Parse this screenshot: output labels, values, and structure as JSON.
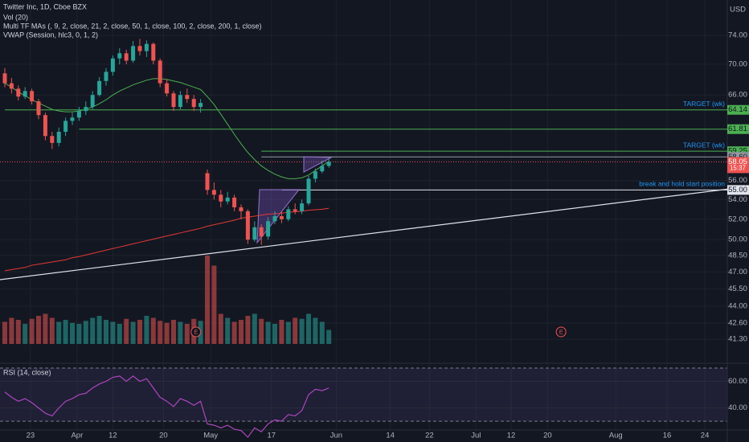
{
  "chart_data": {
    "type": "candlestick",
    "title": "Twitter Inc, 1D, Cboe BZX",
    "indicators": [
      "Vol (20)",
      "Multi TF MAs (, 9, 2, close, 21, 2, close, 50, 1, close, 100, 2, close, 200, 1, close)",
      "VWAP (Session, hlc3, 0, 1, 2)"
    ],
    "currency": "USD",
    "log_scale": true,
    "grid": true,
    "up_color": "#26a69a",
    "down_color": "#ef5350",
    "ylim": [
      40.8,
      79.2
    ],
    "yticks": [
      {
        "value": 74,
        "label": "74.00"
      },
      {
        "value": 70,
        "label": "70.00"
      },
      {
        "value": 66,
        "label": "66.00"
      },
      {
        "value": 56,
        "label": "56.00"
      },
      {
        "value": 54,
        "label": "54.00"
      },
      {
        "value": 52,
        "label": "52.00"
      },
      {
        "value": 50,
        "label": "50.00"
      },
      {
        "value": 48.5,
        "label": "48.50"
      },
      {
        "value": 47,
        "label": "47.00"
      },
      {
        "value": 45.5,
        "label": "45.50"
      },
      {
        "value": 44,
        "label": "44.00"
      },
      {
        "value": 42.6,
        "label": "42.60"
      },
      {
        "value": 41.3,
        "label": "41.30"
      }
    ],
    "xticks": [
      {
        "value": 3.8,
        "label": "23"
      },
      {
        "value": 10.7,
        "label": "Apr"
      },
      {
        "value": 16,
        "label": "12"
      },
      {
        "value": 23.5,
        "label": "20"
      },
      {
        "value": 30.5,
        "label": "May"
      },
      {
        "value": 39.5,
        "label": "17"
      },
      {
        "value": 49.1,
        "label": "Jun"
      },
      {
        "value": 57.1,
        "label": "14"
      },
      {
        "value": 62.9,
        "label": "22"
      },
      {
        "value": 69.8,
        "label": "Jul"
      },
      {
        "value": 75,
        "label": "12"
      },
      {
        "value": 80.4,
        "label": "20"
      },
      {
        "value": 90.5,
        "label": "Aug"
      },
      {
        "value": 98.1,
        "label": "16"
      },
      {
        "value": 103.7,
        "label": "24"
      }
    ],
    "open": [
      68.8,
      67.5,
      66.8,
      65.8,
      66.5,
      65.2,
      63.5,
      61.0,
      60.2,
      61.5,
      62.8,
      63.2,
      64.0,
      64.5,
      66.0,
      67.8,
      69.0,
      70.8,
      71.5,
      70.5,
      72.5,
      71.8,
      72.8,
      70.5,
      67.5,
      66.2,
      64.5,
      66.0,
      65.5,
      64.5,
      56.8,
      55.0,
      54.5,
      53.8,
      54.2,
      53.2,
      52.8,
      50.0,
      51.2,
      50.3,
      51.8,
      52.3,
      52.0,
      53.0,
      52.8,
      53.6,
      56.2,
      57.0,
      57.6
    ],
    "high": [
      69.5,
      68.2,
      67.2,
      67.0,
      66.8,
      65.5,
      63.8,
      61.5,
      62.0,
      63.2,
      63.8,
      64.5,
      65.2,
      66.5,
      68.3,
      69.5,
      71.2,
      72.2,
      72.0,
      73.2,
      73.5,
      73.3,
      73.0,
      70.8,
      68.0,
      66.5,
      66.5,
      66.8,
      66.0,
      65.5,
      57.2,
      55.8,
      55.0,
      54.8,
      54.5,
      53.5,
      53.0,
      51.8,
      51.5,
      52.2,
      52.8,
      52.8,
      53.3,
      53.6,
      54.0,
      56.5,
      57.3,
      58.2,
      58.4
    ],
    "low": [
      67.0,
      66.2,
      65.3,
      65.5,
      64.8,
      63.0,
      60.5,
      59.5,
      59.8,
      61.0,
      62.3,
      62.8,
      63.5,
      64.2,
      65.8,
      67.2,
      68.5,
      70.0,
      70.0,
      70.2,
      71.2,
      71.0,
      70.0,
      67.0,
      65.8,
      64.0,
      64.2,
      65.0,
      64.0,
      63.8,
      54.5,
      54.0,
      53.2,
      53.5,
      52.8,
      52.0,
      49.6,
      49.8,
      49.5,
      50.0,
      51.5,
      51.6,
      51.8,
      52.5,
      52.5,
      53.4,
      55.8,
      56.8,
      57.4
    ],
    "close": [
      67.5,
      66.8,
      65.8,
      66.5,
      65.2,
      63.5,
      61.0,
      60.2,
      61.5,
      62.8,
      63.2,
      64.0,
      64.5,
      66.0,
      67.8,
      69.0,
      70.8,
      71.5,
      70.5,
      72.5,
      71.8,
      72.8,
      70.5,
      67.5,
      66.2,
      64.5,
      66.0,
      65.5,
      64.5,
      65.0,
      55.0,
      54.5,
      53.8,
      54.2,
      53.2,
      52.8,
      50.0,
      51.2,
      50.3,
      51.8,
      52.3,
      52.0,
      53.0,
      52.8,
      53.6,
      56.2,
      57.0,
      57.6,
      58.05
    ],
    "volume": [
      22,
      26,
      24,
      20,
      25,
      28,
      30,
      26,
      22,
      24,
      21,
      20,
      23,
      26,
      28,
      24,
      22,
      20,
      25,
      22,
      24,
      28,
      26,
      23,
      21,
      24,
      22,
      20,
      25,
      23,
      88,
      78,
      30,
      26,
      22,
      24,
      28,
      30,
      25,
      22,
      20,
      24,
      22,
      26,
      25,
      30,
      26,
      22,
      14
    ],
    "ma": [
      {
        "color": "#4caf50",
        "values": [
          67.5,
          67.0,
          66.4,
          65.9,
          65.4,
          65.0,
          64.6,
          64.2,
          64.0,
          63.9,
          63.9,
          64.0,
          64.2,
          64.5,
          64.9,
          65.4,
          66.0,
          66.5,
          66.9,
          67.3,
          67.6,
          67.9,
          68.1,
          68.1,
          68.0,
          67.8,
          67.6,
          67.3,
          67.0,
          66.7,
          65.8,
          64.8,
          63.6,
          62.4,
          61.2,
          60.1,
          59.1,
          58.3,
          57.6,
          57.1,
          56.7,
          56.4,
          56.2,
          56.2,
          56.3,
          56.6,
          57.1,
          57.6,
          58.1
        ]
      },
      {
        "color": "#e53935",
        "values": [
          47.1,
          47.2,
          47.3,
          47.4,
          47.6,
          47.7,
          47.8,
          47.9,
          48.0,
          48.1,
          48.3,
          48.4,
          48.55,
          48.7,
          48.85,
          49.0,
          49.15,
          49.3,
          49.45,
          49.6,
          49.75,
          49.9,
          50.05,
          50.2,
          50.35,
          50.5,
          50.65,
          50.8,
          50.95,
          51.1,
          51.3,
          51.45,
          51.6,
          51.75,
          51.9,
          52.1,
          52.2,
          52.3,
          52.4,
          52.5,
          52.55,
          52.6,
          52.7,
          52.75,
          52.8,
          52.9,
          52.95,
          53.0,
          53.1
        ]
      }
    ],
    "levels": [
      {
        "value": 64.14,
        "label": "64.14",
        "from": 0,
        "color": "#4caf50",
        "text": "TARGET (wk)"
      },
      {
        "value": 61.81,
        "label": "61.81",
        "from": 11,
        "color": "#4caf50"
      },
      {
        "value": 59.25,
        "label": "59.25",
        "from": 38,
        "color": "#4caf50",
        "text": "TARGET (wk)"
      },
      {
        "value": 58.6,
        "label": "58.60",
        "from": 38,
        "color": "#9598a1"
      },
      {
        "value": 55,
        "label": "55.00",
        "from": 41,
        "color": "#e0e3eb",
        "text": "break and hold start position"
      }
    ],
    "last_price": {
      "value": 58.05,
      "label": "58.05",
      "countdown": "15:37",
      "color": "#ef5350"
    },
    "earnings": [
      {
        "index": 28.3,
        "label": "E"
      },
      {
        "index": 82.4,
        "label": "E"
      }
    ],
    "rsi": {
      "title": "RSI (14, close)",
      "color": "#ab47bc",
      "ylim": [
        18,
        73
      ],
      "yticks": [
        {
          "value": 60,
          "label": "60.00"
        },
        {
          "value": 40,
          "label": "40.00"
        }
      ],
      "bands": [
        30,
        70
      ],
      "values": [
        52,
        48,
        45,
        47,
        44,
        40,
        36,
        34,
        40,
        45,
        47,
        50,
        51,
        55,
        58,
        60,
        63,
        64,
        60,
        64,
        60,
        62,
        55,
        48,
        45,
        41,
        47,
        45,
        42,
        45,
        28,
        27,
        25,
        27,
        24,
        23,
        18,
        25,
        22,
        28,
        31,
        30,
        35,
        34,
        38,
        50,
        54,
        53,
        55
      ]
    }
  }
}
